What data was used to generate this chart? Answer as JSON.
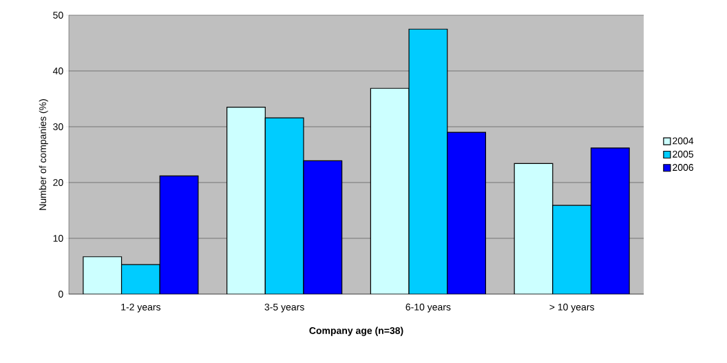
{
  "chart_data": {
    "type": "bar",
    "xlabel": "Company age  (n=38)",
    "ylabel": "Number of companies (%)",
    "categories": [
      "1-2 years",
      "3-5 years",
      "6-10 years",
      "> 10 years"
    ],
    "series": [
      {
        "name": "2004",
        "color": "#ccffff",
        "values": [
          6.7,
          33.5,
          36.9,
          23.4
        ]
      },
      {
        "name": "2005",
        "color": "#00ccff",
        "values": [
          5.3,
          31.6,
          47.5,
          15.9
        ]
      },
      {
        "name": "2006",
        "color": "#0000ff",
        "values": [
          21.2,
          23.9,
          29.0,
          26.2
        ]
      }
    ],
    "ylim": [
      0,
      50
    ],
    "yticks": [
      0,
      10,
      20,
      30,
      40,
      50
    ],
    "grid": "y",
    "legend": "right"
  }
}
